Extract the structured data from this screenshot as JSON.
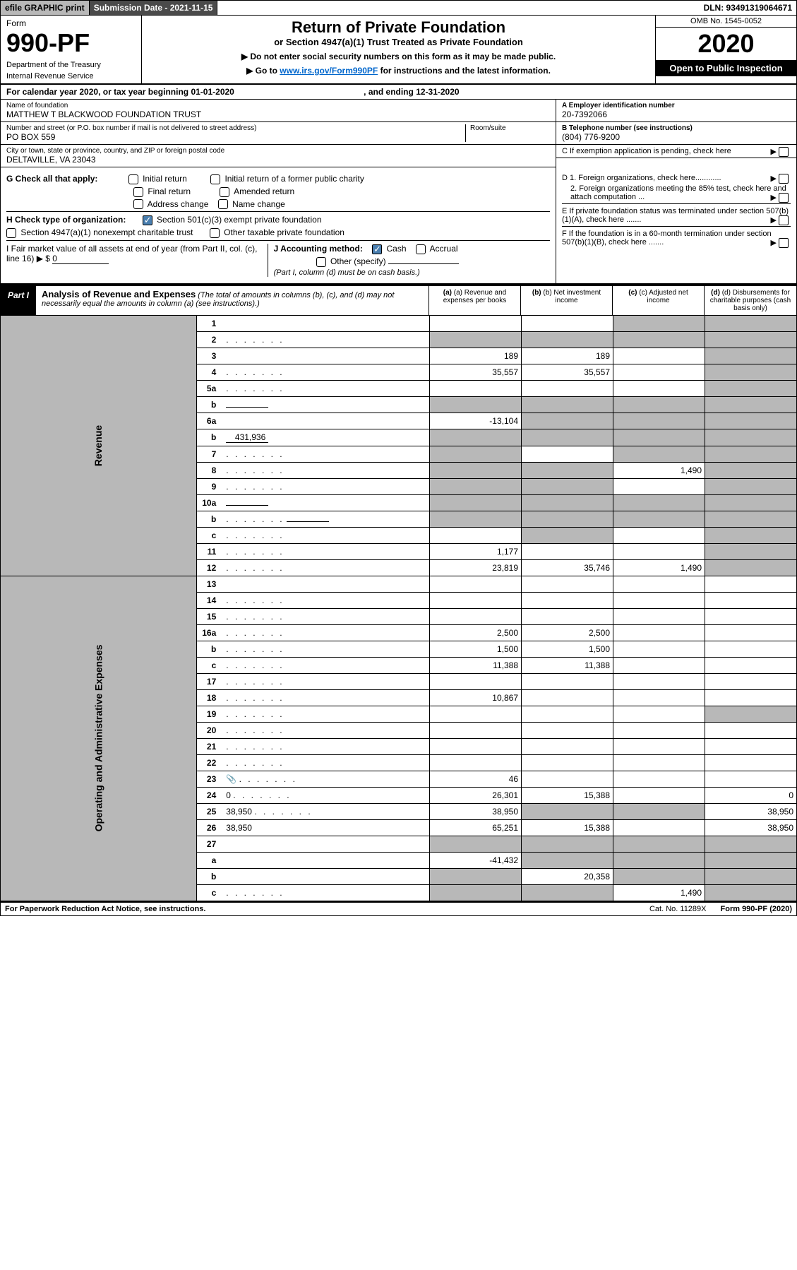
{
  "top": {
    "efile": "efile GRAPHIC print",
    "submission": "Submission Date - 2021-11-15",
    "dln": "DLN: 93491319064671"
  },
  "header": {
    "form_word": "Form",
    "form_no": "990-PF",
    "dept1": "Department of the Treasury",
    "dept2": "Internal Revenue Service",
    "title": "Return of Private Foundation",
    "subtitle": "or Section 4947(a)(1) Trust Treated as Private Foundation",
    "note1": "▶ Do not enter social security numbers on this form as it may be made public.",
    "note2_pre": "▶ Go to ",
    "note2_link": "www.irs.gov/Form990PF",
    "note2_post": " for instructions and the latest information.",
    "omb": "OMB No. 1545-0052",
    "year": "2020",
    "open": "Open to Public Inspection"
  },
  "cal_row": {
    "pre": "For calendar year 2020, or tax year beginning ",
    "begin": "01-01-2020",
    "mid": " , and ending ",
    "end": "12-31-2020"
  },
  "id": {
    "name_lbl": "Name of foundation",
    "name_val": "MATTHEW T BLACKWOOD FOUNDATION TRUST",
    "addr_lbl": "Number and street (or P.O. box number if mail is not delivered to street address)",
    "addr_val": "PO BOX 559",
    "room_lbl": "Room/suite",
    "city_lbl": "City or town, state or province, country, and ZIP or foreign postal code",
    "city_val": "DELTAVILLE, VA  23043",
    "ein_lbl": "A Employer identification number",
    "ein_val": "20-7392066",
    "tel_lbl": "B Telephone number (see instructions)",
    "tel_val": "(804) 776-9200",
    "pending": "C If exemption application is pending, check here"
  },
  "checks": {
    "g_label": "G Check all that apply:",
    "g1": "Initial return",
    "g2": "Initial return of a former public charity",
    "g3": "Final return",
    "g4": "Amended return",
    "g5": "Address change",
    "g6": "Name change",
    "h_label": "H Check type of organization:",
    "h1": "Section 501(c)(3) exempt private foundation",
    "h2": "Section 4947(a)(1) nonexempt charitable trust",
    "h3": "Other taxable private foundation",
    "i_label": "I Fair market value of all assets at end of year (from Part II, col. (c), line 16) ▶ $",
    "i_val": "0",
    "j_label": "J Accounting method:",
    "j1": "Cash",
    "j2": "Accrual",
    "j3": "Other (specify)",
    "j_note": "(Part I, column (d) must be on cash basis.)",
    "d1": "D 1. Foreign organizations, check here............",
    "d2": "2. Foreign organizations meeting the 85% test, check here and attach computation ...",
    "e": "E  If private foundation status was terminated under section 507(b)(1)(A), check here .......",
    "f": "F  If the foundation is in a 60-month termination under section 507(b)(1)(B), check here .......",
    "arrow": "▶"
  },
  "part1": {
    "label": "Part I",
    "title": "Analysis of Revenue and Expenses",
    "title_note": " (The total of amounts in columns (b), (c), and (d) may not necessarily equal the amounts in column (a) (see instructions).)",
    "col_a": "(a) Revenue and expenses per books",
    "col_b": "(b) Net investment income",
    "col_c": "(c) Adjusted net income",
    "col_d": "(d) Disbursements for charitable purposes (cash basis only)"
  },
  "sides": {
    "revenue": "Revenue",
    "expenses": "Operating and Administrative Expenses"
  },
  "rows": [
    {
      "n": "1",
      "d": "",
      "a": "",
      "b": "",
      "c": "",
      "shade_c": true,
      "shade_d": true
    },
    {
      "n": "2",
      "d": "",
      "dots": true,
      "a": "",
      "b": "",
      "c": "",
      "shade_a": true,
      "shade_b": true,
      "shade_c": true,
      "shade_d": true,
      "checkmark": true
    },
    {
      "n": "3",
      "d": "",
      "a": "189",
      "b": "189",
      "c": "",
      "shade_d": true
    },
    {
      "n": "4",
      "d": "",
      "dots": true,
      "a": "35,557",
      "b": "35,557",
      "c": "",
      "shade_d": true
    },
    {
      "n": "5a",
      "d": "",
      "dots": true,
      "a": "",
      "b": "",
      "c": "",
      "shade_d": true
    },
    {
      "n": "b",
      "d": "",
      "inline": "",
      "a": "",
      "b": "",
      "c": "",
      "shade_a": true,
      "shade_b": true,
      "shade_c": true,
      "shade_d": true
    },
    {
      "n": "6a",
      "d": "",
      "a": "-13,104",
      "b": "",
      "c": "",
      "shade_b": true,
      "shade_c": true,
      "shade_d": true
    },
    {
      "n": "b",
      "d": "",
      "inline": "431,936",
      "a": "",
      "b": "",
      "c": "",
      "shade_a": true,
      "shade_b": true,
      "shade_c": true,
      "shade_d": true
    },
    {
      "n": "7",
      "d": "",
      "dots": true,
      "a": "",
      "b": "",
      "c": "",
      "shade_a": true,
      "shade_c": true,
      "shade_d": true
    },
    {
      "n": "8",
      "d": "",
      "dots": true,
      "a": "",
      "b": "",
      "c": "1,490",
      "shade_a": true,
      "shade_b": true,
      "shade_d": true
    },
    {
      "n": "9",
      "d": "",
      "dots": true,
      "a": "",
      "b": "",
      "c": "",
      "shade_a": true,
      "shade_b": true,
      "shade_d": true
    },
    {
      "n": "10a",
      "d": "",
      "inline": "",
      "a": "",
      "b": "",
      "c": "",
      "shade_a": true,
      "shade_b": true,
      "shade_c": true,
      "shade_d": true
    },
    {
      "n": "b",
      "d": "",
      "dots": true,
      "inline": "",
      "a": "",
      "b": "",
      "c": "",
      "shade_a": true,
      "shade_b": true,
      "shade_c": true,
      "shade_d": true
    },
    {
      "n": "c",
      "d": "",
      "dots": true,
      "a": "",
      "b": "",
      "c": "",
      "shade_b": true,
      "shade_d": true
    },
    {
      "n": "11",
      "d": "",
      "dots": true,
      "a": "1,177",
      "b": "",
      "c": "",
      "shade_d": true
    },
    {
      "n": "12",
      "d": "",
      "dots": true,
      "a": "23,819",
      "b": "35,746",
      "c": "1,490",
      "shade_d": true,
      "bold": true
    }
  ],
  "rows2": [
    {
      "n": "13",
      "d": "",
      "a": "",
      "b": "",
      "c": ""
    },
    {
      "n": "14",
      "d": "",
      "dots": true,
      "a": "",
      "b": "",
      "c": ""
    },
    {
      "n": "15",
      "d": "",
      "dots": true,
      "a": "",
      "b": "",
      "c": ""
    },
    {
      "n": "16a",
      "d": "",
      "dots": true,
      "a": "2,500",
      "b": "2,500",
      "c": ""
    },
    {
      "n": "b",
      "d": "",
      "dots": true,
      "a": "1,500",
      "b": "1,500",
      "c": ""
    },
    {
      "n": "c",
      "d": "",
      "dots": true,
      "a": "11,388",
      "b": "11,388",
      "c": ""
    },
    {
      "n": "17",
      "d": "",
      "dots": true,
      "a": "",
      "b": "",
      "c": ""
    },
    {
      "n": "18",
      "d": "",
      "dots": true,
      "a": "10,867",
      "b": "",
      "c": ""
    },
    {
      "n": "19",
      "d": "",
      "dots": true,
      "a": "",
      "b": "",
      "c": "",
      "shade_d": true
    },
    {
      "n": "20",
      "d": "",
      "dots": true,
      "a": "",
      "b": "",
      "c": ""
    },
    {
      "n": "21",
      "d": "",
      "dots": true,
      "a": "",
      "b": "",
      "c": ""
    },
    {
      "n": "22",
      "d": "",
      "dots": true,
      "a": "",
      "b": "",
      "c": ""
    },
    {
      "n": "23",
      "d": "",
      "dots": true,
      "icon": true,
      "a": "46",
      "b": "",
      "c": ""
    },
    {
      "n": "24",
      "d": "0",
      "dots": true,
      "a": "26,301",
      "b": "15,388",
      "c": ""
    },
    {
      "n": "25",
      "d": "38,950",
      "dots": true,
      "a": "38,950",
      "b": "",
      "c": "",
      "shade_b": true,
      "shade_c": true
    },
    {
      "n": "26",
      "d": "38,950",
      "a": "65,251",
      "b": "15,388",
      "c": ""
    },
    {
      "n": "27",
      "d": "",
      "a": "",
      "b": "",
      "c": "",
      "shade_a": true,
      "shade_b": true,
      "shade_c": true,
      "shade_d": true
    },
    {
      "n": "a",
      "d": "",
      "a": "-41,432",
      "b": "",
      "c": "",
      "shade_b": true,
      "shade_c": true,
      "shade_d": true
    },
    {
      "n": "b",
      "d": "",
      "a": "",
      "b": "20,358",
      "c": "",
      "shade_a": true,
      "shade_c": true,
      "shade_d": true
    },
    {
      "n": "c",
      "d": "",
      "dots": true,
      "a": "",
      "b": "",
      "c": "1,490",
      "shade_a": true,
      "shade_b": true,
      "shade_d": true
    }
  ],
  "footer": {
    "left": "For Paperwork Reduction Act Notice, see instructions.",
    "cat": "Cat. No. 11289X",
    "form": "Form 990-PF (2020)"
  }
}
